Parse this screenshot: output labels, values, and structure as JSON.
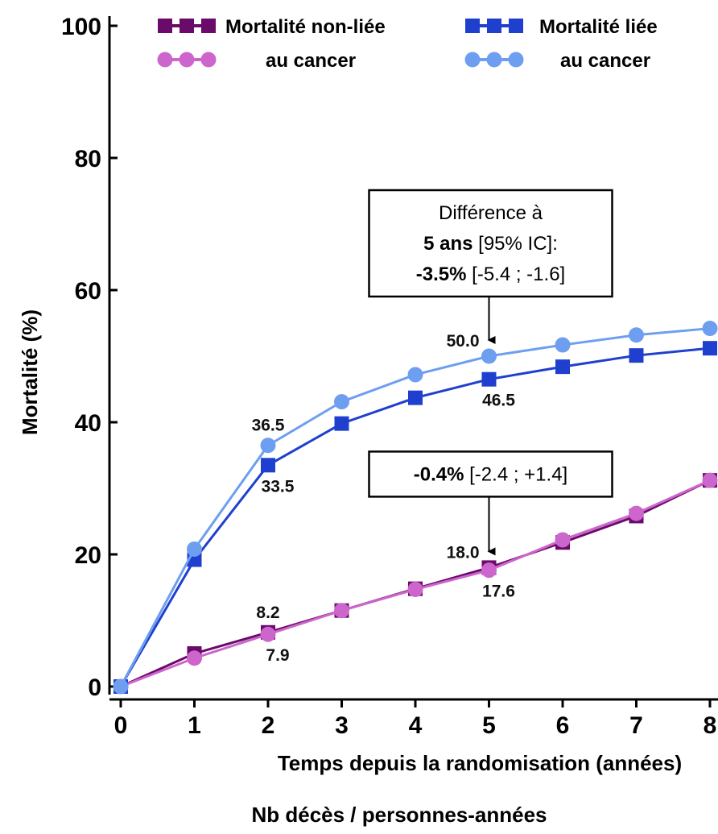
{
  "chart_data": {
    "type": "line",
    "ylabel": "Mortalité  (%)",
    "xlabel": "Temps depuis la randomisation  (années)",
    "subcaption": "Nb décès / personnes-années",
    "x": [
      0,
      1,
      2,
      3,
      4,
      5,
      6,
      7,
      8
    ],
    "xlim": [
      0,
      8
    ],
    "ylim": [
      0,
      100
    ],
    "x_ticks": [
      "0",
      "1",
      "2",
      "3",
      "4",
      "5",
      "6",
      "7",
      "8"
    ],
    "y_ticks": [
      "0",
      "20",
      "40",
      "60",
      "80",
      "100"
    ],
    "grid": false,
    "legend": {
      "placement": "top",
      "entries": [
        {
          "line1": "Mortalité non-liée",
          "line2": "au cancer"
        },
        {
          "line1": "Mortalité liée",
          "line2": "au cancer"
        }
      ]
    },
    "series": [
      {
        "group": 0,
        "marker": "square",
        "color": "#6a0a6a",
        "values": [
          0,
          5,
          8.2,
          11.5,
          14.8,
          18.0,
          21.8,
          25.8,
          31.2
        ]
      },
      {
        "group": 0,
        "marker": "circle",
        "color": "#cc66cc",
        "values": [
          0,
          4.3,
          7.9,
          11.5,
          14.7,
          17.6,
          22.2,
          26.2,
          31.2
        ]
      },
      {
        "group": 1,
        "marker": "square",
        "color": "#1f3fcf",
        "values": [
          0,
          19.2,
          33.5,
          39.8,
          43.7,
          46.5,
          48.4,
          50.1,
          51.2
        ]
      },
      {
        "group": 1,
        "marker": "circle",
        "color": "#6e9ef0",
        "values": [
          0,
          20.8,
          36.5,
          43.1,
          47.2,
          50.0,
          51.7,
          53.2,
          54.2
        ]
      }
    ],
    "data_labels": [
      {
        "text": "36.5",
        "x": 2,
        "y": 36.5,
        "pos": "above"
      },
      {
        "text": "33.5",
        "x": 2,
        "y": 33.5,
        "pos": "below"
      },
      {
        "text": "8.2",
        "x": 2,
        "y": 8.2,
        "pos": "above"
      },
      {
        "text": "7.9",
        "x": 2,
        "y": 7.9,
        "pos": "below"
      },
      {
        "text": "50.0",
        "x": 5,
        "y": 50.0,
        "pos": "left-above"
      },
      {
        "text": "46.5",
        "x": 5,
        "y": 46.5,
        "pos": "below"
      },
      {
        "text": "18.0",
        "x": 5,
        "y": 18.0,
        "pos": "left-above"
      },
      {
        "text": "17.6",
        "x": 5,
        "y": 17.6,
        "pos": "below"
      }
    ],
    "annotations": [
      {
        "x": 5,
        "y": 50.0,
        "lines": [
          [
            {
              "t": "Différence à",
              "b": false
            }
          ],
          [
            {
              "t": "5 ans",
              "b": true
            },
            {
              "t": " [95% IC]:",
              "b": false
            }
          ],
          [
            {
              "t": "-3.5%",
              "b": true
            },
            {
              "t": " [-5.4 ; -1.6]",
              "b": false
            }
          ]
        ]
      },
      {
        "x": 5,
        "y": 18.0,
        "lines": [
          [
            {
              "t": "-0.4%",
              "b": true
            },
            {
              "t": " [-2.4 ; +1.4]",
              "b": false
            }
          ]
        ]
      }
    ]
  }
}
